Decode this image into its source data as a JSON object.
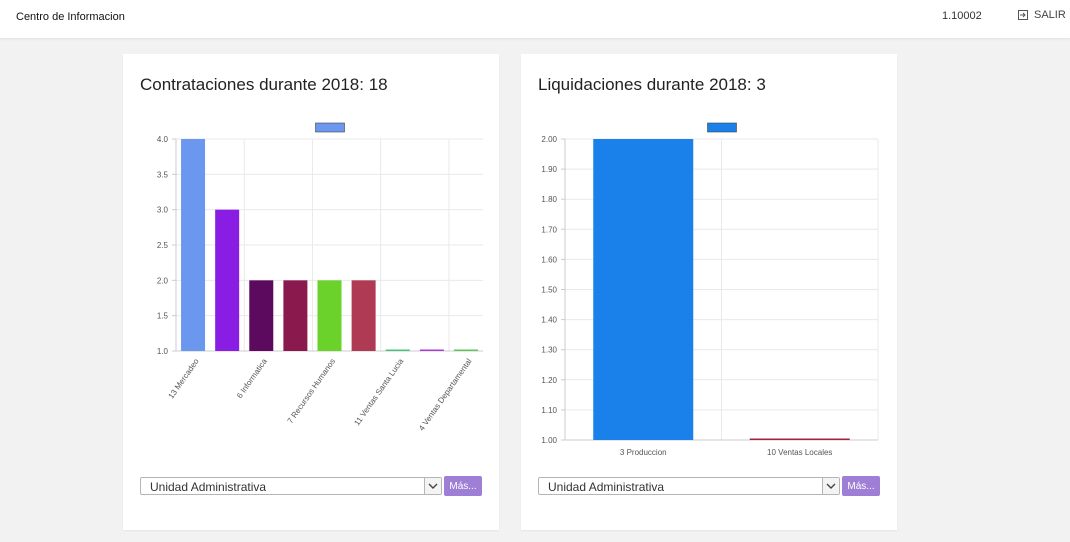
{
  "header": {
    "app_title": "Centro de Informacion",
    "version": "1.10002",
    "logout_label": "SALIR"
  },
  "cards": [
    {
      "title": "Contrataciones durante 2018: 18",
      "filter": {
        "selected": "Unidad Administrativa",
        "more_label": "Más..."
      },
      "chart_data": {
        "type": "bar",
        "title": "",
        "xlabel": "",
        "ylabel": "",
        "ylim": [
          1.0,
          4.0
        ],
        "y_ticks": [
          "1.0",
          "1.5",
          "2.0",
          "2.5",
          "3.0",
          "3.5",
          "4.0"
        ],
        "categories": [
          "13 Mercadeo",
          "",
          "6 Informatica",
          "",
          "7 Recursos Humanos",
          "",
          "11 Ventas Santa Lucia",
          "",
          "4 Ventas Departamental"
        ],
        "values": [
          4,
          3,
          2,
          2,
          2,
          2,
          1,
          1,
          1
        ],
        "colors": [
          "#6b97ee",
          "#8a1de3",
          "#5b0a5e",
          "#8a1a4e",
          "#6ad22b",
          "#ae3a53",
          "#47c47b",
          "#a83ad8",
          "#5cc65c"
        ],
        "legend_color": "#6b97ee",
        "grid": true,
        "legend_position": "top"
      }
    },
    {
      "title": "Liquidaciones durante 2018: 3",
      "filter": {
        "selected": "Unidad Administrativa",
        "more_label": "Más..."
      },
      "chart_data": {
        "type": "bar",
        "title": "",
        "xlabel": "",
        "ylabel": "",
        "ylim": [
          1.0,
          2.0
        ],
        "y_ticks": [
          "1.00",
          "1.10",
          "1.20",
          "1.30",
          "1.40",
          "1.50",
          "1.60",
          "1.70",
          "1.80",
          "1.90",
          "2.00"
        ],
        "categories": [
          "3 Produccion",
          "10 Ventas Locales"
        ],
        "values": [
          2,
          1
        ],
        "colors": [
          "#1a81ea",
          "#a3243a"
        ],
        "legend_color": "#1a81ea",
        "grid": true,
        "legend_position": "top"
      }
    }
  ]
}
